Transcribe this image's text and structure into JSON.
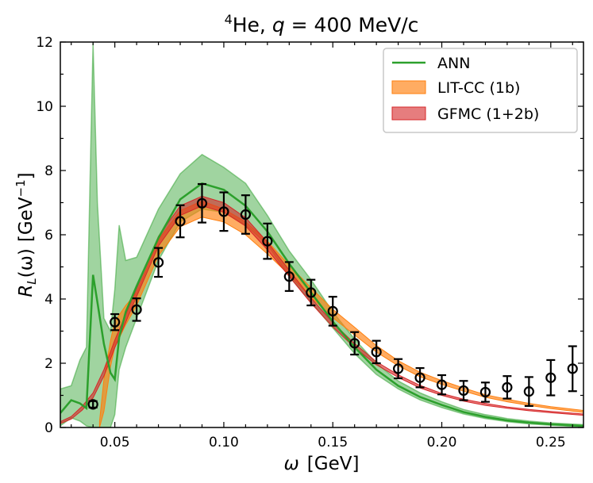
{
  "chart_data": {
    "type": "line",
    "title": {
      "sup": "4",
      "main": "He, ",
      "var": "q",
      "rest": " = 400 MeV/c"
    },
    "xlabel": {
      "var": "ω",
      "unit": "[GeV]"
    },
    "ylabel": {
      "var": "R",
      "sub": "L",
      "arg": "(ω)",
      "unit": "[GeV",
      "exp": "−1",
      "close": "]"
    },
    "xlim": [
      0.025,
      0.265
    ],
    "ylim": [
      0,
      12
    ],
    "xticks": [
      0.05,
      0.1,
      0.15,
      0.2,
      0.25
    ],
    "xtick_labels": [
      "0.05",
      "0.10",
      "0.15",
      "0.20",
      "0.25"
    ],
    "yticks": [
      0,
      2,
      4,
      6,
      8,
      10,
      12
    ],
    "ytick_labels": [
      "0",
      "2",
      "4",
      "6",
      "8",
      "10",
      "12"
    ],
    "legend_position": "top-right",
    "legend": [
      "ANN",
      "LIT-CC (1b)",
      "GFMC (1+2b)"
    ],
    "colors": {
      "ann": "#2ca02c",
      "litcc": "#ff7f0e",
      "gfmc": "#d62728",
      "data": "#000000"
    },
    "series": [
      {
        "name": "ANN",
        "x": [
          0.025,
          0.03,
          0.034,
          0.037,
          0.04,
          0.042,
          0.045,
          0.048,
          0.05,
          0.052,
          0.055,
          0.06,
          0.07,
          0.08,
          0.09,
          0.1,
          0.11,
          0.12,
          0.13,
          0.14,
          0.15,
          0.16,
          0.17,
          0.18,
          0.19,
          0.2,
          0.21,
          0.22,
          0.23,
          0.24,
          0.25,
          0.265
        ],
        "y": [
          0.45,
          0.85,
          0.75,
          0.6,
          4.75,
          3.9,
          2.6,
          1.7,
          1.5,
          2.8,
          3.6,
          4.4,
          5.9,
          7.1,
          7.6,
          7.4,
          6.9,
          6.1,
          5.1,
          4.2,
          3.3,
          2.5,
          1.8,
          1.3,
          0.95,
          0.7,
          0.48,
          0.33,
          0.22,
          0.15,
          0.1,
          0.05
        ],
        "lower": [
          0.05,
          0.3,
          0.2,
          0.05,
          0.0,
          0.0,
          0.0,
          0.0,
          0.4,
          1.8,
          2.5,
          3.4,
          5.2,
          6.4,
          6.8,
          6.7,
          6.3,
          5.7,
          4.7,
          3.9,
          3.1,
          2.3,
          1.65,
          1.2,
          0.86,
          0.62,
          0.42,
          0.28,
          0.18,
          0.11,
          0.07,
          0.02
        ],
        "upper": [
          1.2,
          1.3,
          2.1,
          2.5,
          12.0,
          7.0,
          3.4,
          3.0,
          4.3,
          6.3,
          5.2,
          5.3,
          6.8,
          7.9,
          8.5,
          8.1,
          7.6,
          6.6,
          5.5,
          4.6,
          3.6,
          2.75,
          2.0,
          1.45,
          1.08,
          0.8,
          0.56,
          0.4,
          0.28,
          0.2,
          0.14,
          0.09
        ]
      },
      {
        "name": "LIT-CC (1b)",
        "x": [
          0.043,
          0.045,
          0.048,
          0.05,
          0.055,
          0.06,
          0.07,
          0.08,
          0.09,
          0.1,
          0.11,
          0.12,
          0.13,
          0.14,
          0.15,
          0.16,
          0.17,
          0.18,
          0.19,
          0.2,
          0.21,
          0.22,
          0.23,
          0.24,
          0.25,
          0.265
        ],
        "y": [
          0.0,
          1.0,
          2.3,
          2.9,
          3.5,
          4.0,
          5.6,
          6.5,
          6.8,
          6.6,
          6.2,
          5.6,
          4.9,
          4.2,
          3.55,
          3.0,
          2.45,
          2.0,
          1.65,
          1.4,
          1.18,
          0.98,
          0.84,
          0.72,
          0.62,
          0.5
        ],
        "lower": [
          0.0,
          0.5,
          1.9,
          2.5,
          3.2,
          3.8,
          5.35,
          6.25,
          6.55,
          6.4,
          6.0,
          5.4,
          4.75,
          4.05,
          3.42,
          2.88,
          2.35,
          1.92,
          1.58,
          1.34,
          1.13,
          0.94,
          0.8,
          0.69,
          0.59,
          0.47
        ],
        "upper": [
          0.2,
          1.5,
          2.7,
          3.3,
          3.8,
          4.2,
          5.85,
          6.75,
          7.05,
          6.8,
          6.4,
          5.8,
          5.05,
          4.35,
          3.68,
          3.12,
          2.55,
          2.08,
          1.72,
          1.46,
          1.23,
          1.02,
          0.88,
          0.75,
          0.65,
          0.53
        ]
      },
      {
        "name": "GFMC (1+2b)",
        "x": [
          0.025,
          0.03,
          0.035,
          0.04,
          0.045,
          0.05,
          0.055,
          0.06,
          0.07,
          0.08,
          0.09,
          0.1,
          0.11,
          0.12,
          0.13,
          0.14,
          0.15,
          0.16,
          0.17,
          0.18,
          0.19,
          0.2,
          0.21,
          0.22,
          0.23,
          0.24,
          0.25,
          0.265
        ],
        "y": [
          0.15,
          0.3,
          0.6,
          1.0,
          1.7,
          2.6,
          3.4,
          4.2,
          5.8,
          6.75,
          7.05,
          6.85,
          6.4,
          5.65,
          4.8,
          3.95,
          3.2,
          2.55,
          2.0,
          1.6,
          1.27,
          1.03,
          0.85,
          0.72,
          0.62,
          0.54,
          0.48,
          0.4
        ],
        "lower": [
          0.12,
          0.26,
          0.54,
          0.92,
          1.6,
          2.48,
          3.28,
          4.08,
          5.65,
          6.6,
          6.9,
          6.7,
          6.27,
          5.53,
          4.7,
          3.87,
          3.13,
          2.49,
          1.95,
          1.56,
          1.23,
          1.0,
          0.82,
          0.69,
          0.6,
          0.52,
          0.46,
          0.38
        ],
        "upper": [
          0.18,
          0.34,
          0.66,
          1.08,
          1.8,
          2.72,
          3.52,
          4.32,
          5.95,
          6.9,
          7.2,
          7.0,
          6.53,
          5.77,
          4.9,
          4.03,
          3.27,
          2.61,
          2.05,
          1.64,
          1.31,
          1.06,
          0.88,
          0.75,
          0.64,
          0.56,
          0.5,
          0.42
        ]
      }
    ],
    "experimental_data": {
      "x": [
        0.04,
        0.05,
        0.06,
        0.07,
        0.08,
        0.09,
        0.1,
        0.11,
        0.12,
        0.13,
        0.14,
        0.15,
        0.16,
        0.17,
        0.18,
        0.19,
        0.2,
        0.21,
        0.22,
        0.23,
        0.24,
        0.25,
        0.26
      ],
      "y": [
        0.72,
        3.28,
        3.67,
        5.14,
        6.42,
        6.98,
        6.72,
        6.63,
        5.8,
        4.7,
        4.2,
        3.62,
        2.62,
        2.35,
        1.83,
        1.55,
        1.33,
        1.15,
        1.1,
        1.25,
        1.12,
        1.55,
        1.83
      ],
      "err": [
        0.1,
        0.25,
        0.35,
        0.45,
        0.5,
        0.6,
        0.6,
        0.6,
        0.55,
        0.45,
        0.4,
        0.45,
        0.35,
        0.35,
        0.3,
        0.3,
        0.3,
        0.3,
        0.3,
        0.35,
        0.45,
        0.55,
        0.7
      ]
    }
  }
}
